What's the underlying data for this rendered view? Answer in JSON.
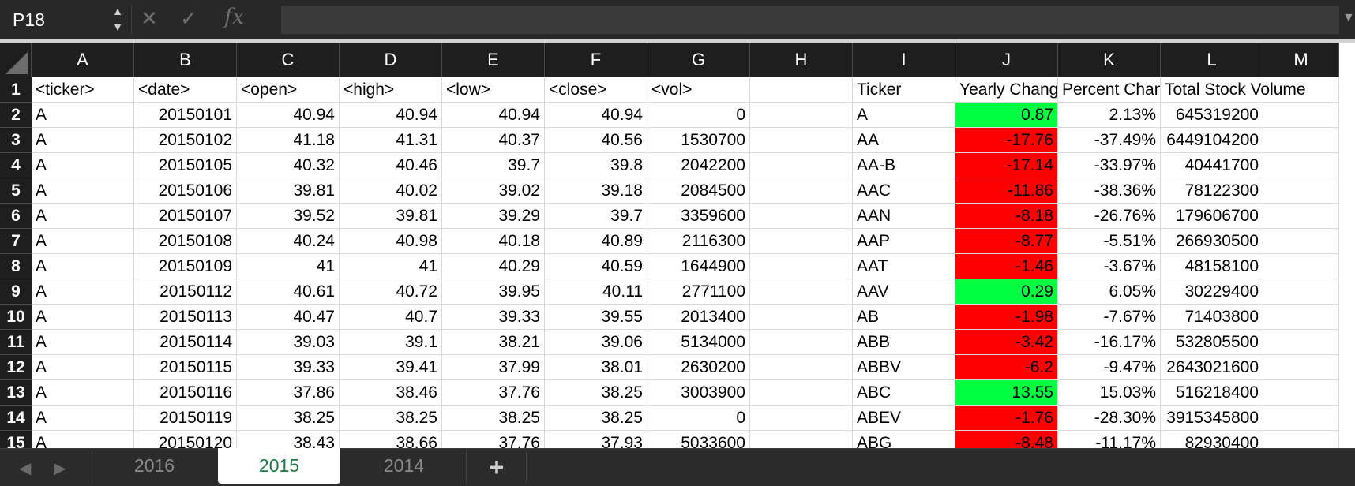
{
  "name_box": {
    "value": "P18"
  },
  "formula_bar": {
    "cancel_icon": "✕",
    "confirm_icon": "✓",
    "fx_label": "fx",
    "value": ""
  },
  "columns": [
    "A",
    "B",
    "C",
    "D",
    "E",
    "F",
    "G",
    "H",
    "I",
    "J",
    "K",
    "L",
    "M"
  ],
  "rows": [
    {
      "n": "1",
      "cells": [
        "<ticker>",
        "<date>",
        "<open>",
        "<high>",
        "<low>",
        "<close>",
        "<vol>",
        "",
        "Ticker",
        "Yearly Change",
        "Percent Change",
        "Total Stock Volume",
        ""
      ]
    },
    {
      "n": "2",
      "cells": [
        "A",
        "20150101",
        "40.94",
        "40.94",
        "40.94",
        "40.94",
        "0",
        "",
        "A",
        "0.87",
        "2.13%",
        "645319200",
        ""
      ]
    },
    {
      "n": "3",
      "cells": [
        "A",
        "20150102",
        "41.18",
        "41.31",
        "40.37",
        "40.56",
        "1530700",
        "",
        "AA",
        "-17.76",
        "-37.49%",
        "6449104200",
        ""
      ]
    },
    {
      "n": "4",
      "cells": [
        "A",
        "20150105",
        "40.32",
        "40.46",
        "39.7",
        "39.8",
        "2042200",
        "",
        "AA-B",
        "-17.14",
        "-33.97%",
        "40441700",
        ""
      ]
    },
    {
      "n": "5",
      "cells": [
        "A",
        "20150106",
        "39.81",
        "40.02",
        "39.02",
        "39.18",
        "2084500",
        "",
        "AAC",
        "-11.86",
        "-38.36%",
        "78122300",
        ""
      ]
    },
    {
      "n": "6",
      "cells": [
        "A",
        "20150107",
        "39.52",
        "39.81",
        "39.29",
        "39.7",
        "3359600",
        "",
        "AAN",
        "-8.18",
        "-26.76%",
        "179606700",
        ""
      ]
    },
    {
      "n": "7",
      "cells": [
        "A",
        "20150108",
        "40.24",
        "40.98",
        "40.18",
        "40.89",
        "2116300",
        "",
        "AAP",
        "-8.77",
        "-5.51%",
        "266930500",
        ""
      ]
    },
    {
      "n": "8",
      "cells": [
        "A",
        "20150109",
        "41",
        "41",
        "40.29",
        "40.59",
        "1644900",
        "",
        "AAT",
        "-1.46",
        "-3.67%",
        "48158100",
        ""
      ]
    },
    {
      "n": "9",
      "cells": [
        "A",
        "20150112",
        "40.61",
        "40.72",
        "39.95",
        "40.11",
        "2771100",
        "",
        "AAV",
        "0.29",
        "6.05%",
        "30229400",
        ""
      ]
    },
    {
      "n": "10",
      "cells": [
        "A",
        "20150113",
        "40.47",
        "40.7",
        "39.33",
        "39.55",
        "2013400",
        "",
        "AB",
        "-1.98",
        "-7.67%",
        "71403800",
        ""
      ]
    },
    {
      "n": "11",
      "cells": [
        "A",
        "20150114",
        "39.03",
        "39.1",
        "38.21",
        "39.06",
        "5134000",
        "",
        "ABB",
        "-3.42",
        "-16.17%",
        "532805500",
        ""
      ]
    },
    {
      "n": "12",
      "cells": [
        "A",
        "20150115",
        "39.33",
        "39.41",
        "37.99",
        "38.01",
        "2630200",
        "",
        "ABBV",
        "-6.2",
        "-9.47%",
        "2643021600",
        ""
      ]
    },
    {
      "n": "13",
      "cells": [
        "A",
        "20150116",
        "37.86",
        "38.46",
        "37.76",
        "38.25",
        "3003900",
        "",
        "ABC",
        "13.55",
        "15.03%",
        "516218400",
        ""
      ]
    },
    {
      "n": "14",
      "cells": [
        "A",
        "20150119",
        "38.25",
        "38.25",
        "38.25",
        "38.25",
        "0",
        "",
        "ABEV",
        "-1.76",
        "-28.30%",
        "3915345800",
        ""
      ]
    },
    {
      "n": "15",
      "cells": [
        "A",
        "20150120",
        "38.43",
        "38.66",
        "37.76",
        "37.93",
        "5033600",
        "",
        "ABG",
        "-8.48",
        "-11.17%",
        "82930400",
        ""
      ]
    }
  ],
  "conditional_colors": {
    "positive": "#00ff41",
    "negative": "#ff0000"
  },
  "sheet_tabs": {
    "prev_icon": "◀",
    "next_icon": "▶",
    "tabs": [
      "2016",
      "2015",
      "2014"
    ],
    "active": "2015",
    "add_label": "+"
  }
}
